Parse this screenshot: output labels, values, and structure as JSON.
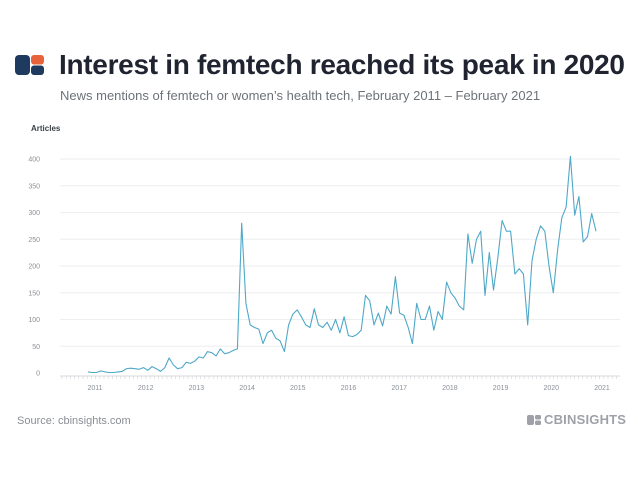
{
  "header": {
    "title": "Interest in femtech reached its peak in 2020",
    "subtitle": "News mentions of femtech or women’s health tech, February 2011 – February 2021"
  },
  "footer": {
    "source": "Source: cbinsights.com",
    "brand": "CBINSIGHTS"
  },
  "colors": {
    "line": "#4ea8c8",
    "logo_dark": "#1f3a5f",
    "logo_orange": "#e8633a"
  },
  "chart_data": {
    "type": "line",
    "title": "Interest in femtech reached its peak in 2020",
    "ylabel": "Articles",
    "xlabel": "",
    "ylim": [
      0,
      400
    ],
    "yticks": [
      0,
      50,
      100,
      150,
      200,
      250,
      300,
      350,
      400
    ],
    "xticks": [
      "2011",
      "2012",
      "2013",
      "2014",
      "2015",
      "2016",
      "2017",
      "2018",
      "2019",
      "2020",
      "2021"
    ],
    "grid": true,
    "x_start": "2011-02",
    "x_end": "2021-02",
    "series": [
      {
        "values": [
          2,
          1,
          1,
          4,
          2,
          1,
          1,
          2,
          3,
          8,
          9,
          8,
          7,
          10,
          5,
          12,
          8,
          3,
          10,
          28,
          15,
          8,
          10,
          20,
          18,
          22,
          30,
          28,
          40,
          38,
          32,
          45,
          36,
          38,
          42,
          45,
          280,
          130,
          90,
          85,
          82,
          55,
          75,
          80,
          65,
          60,
          40,
          90,
          110,
          118,
          105,
          90,
          85,
          120,
          90,
          85,
          95,
          80,
          100,
          75,
          105,
          70,
          68,
          72,
          80,
          145,
          135,
          90,
          112,
          88,
          125,
          110,
          180,
          112,
          108,
          85,
          55,
          130,
          100,
          100,
          125,
          80,
          115,
          100,
          170,
          150,
          140,
          125,
          118,
          260,
          205,
          250,
          265,
          145,
          225,
          155,
          215,
          285,
          265,
          265,
          185,
          195,
          185,
          90,
          210,
          250,
          275,
          265,
          200,
          150,
          230,
          290,
          310,
          405,
          295,
          330,
          245,
          255,
          298,
          265
        ]
      }
    ]
  }
}
